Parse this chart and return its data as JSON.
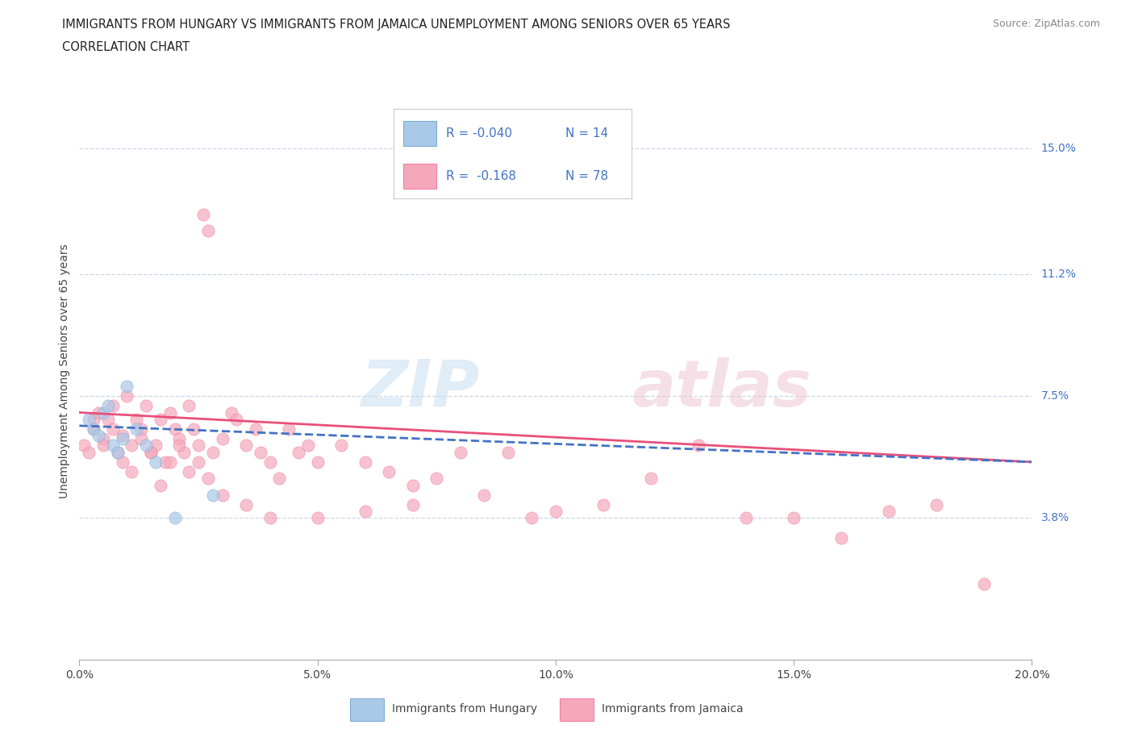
{
  "title_line1": "IMMIGRANTS FROM HUNGARY VS IMMIGRANTS FROM JAMAICA UNEMPLOYMENT AMONG SENIORS OVER 65 YEARS",
  "title_line2": "CORRELATION CHART",
  "source_text": "Source: ZipAtlas.com",
  "ylabel": "Unemployment Among Seniors over 65 years",
  "xlim": [
    0.0,
    0.2
  ],
  "ylim": [
    -0.005,
    0.17
  ],
  "ytick_vals": [
    0.038,
    0.075,
    0.112,
    0.15
  ],
  "ytick_labels": [
    "3.8%",
    "7.5%",
    "11.2%",
    "15.0%"
  ],
  "xtick_vals": [
    0.0,
    0.05,
    0.1,
    0.15,
    0.2
  ],
  "xtick_labels": [
    "0.0%",
    "5.0%",
    "10.0%",
    "15.0%",
    "20.0%"
  ],
  "hungary_color": "#aac8e8",
  "jamaica_color": "#f5a8bc",
  "hungary_edge_color": "#7aaed4",
  "jamaica_edge_color": "#f080a0",
  "hungary_line_color": "#4472c4",
  "jamaica_line_color": "#e8507a",
  "legend_R_hungary": "R = -0.040",
  "legend_N_hungary": "N = 14",
  "legend_R_jamaica": "R =  -0.168",
  "legend_N_jamaica": "N = 78",
  "hungary_label": "Immigrants from Hungary",
  "jamaica_label": "Immigrants from Jamaica",
  "background_color": "#ffffff",
  "grid_color": "#c8d8e8",
  "hungary_scatter_x": [
    0.002,
    0.003,
    0.004,
    0.005,
    0.006,
    0.007,
    0.008,
    0.009,
    0.01,
    0.012,
    0.014,
    0.016,
    0.02,
    0.028
  ],
  "hungary_scatter_y": [
    0.068,
    0.065,
    0.063,
    0.07,
    0.072,
    0.06,
    0.058,
    0.062,
    0.078,
    0.065,
    0.06,
    0.055,
    0.038,
    0.045
  ],
  "jamaica_scatter_x": [
    0.001,
    0.002,
    0.003,
    0.004,
    0.005,
    0.006,
    0.007,
    0.008,
    0.009,
    0.01,
    0.011,
    0.012,
    0.013,
    0.014,
    0.015,
    0.016,
    0.017,
    0.018,
    0.019,
    0.02,
    0.021,
    0.022,
    0.023,
    0.024,
    0.025,
    0.026,
    0.027,
    0.028,
    0.03,
    0.032,
    0.033,
    0.035,
    0.037,
    0.038,
    0.04,
    0.042,
    0.044,
    0.046,
    0.048,
    0.05,
    0.055,
    0.06,
    0.065,
    0.07,
    0.075,
    0.08,
    0.085,
    0.09,
    0.095,
    0.1,
    0.11,
    0.12,
    0.13,
    0.14,
    0.15,
    0.16,
    0.17,
    0.18,
    0.19,
    0.003,
    0.005,
    0.007,
    0.009,
    0.011,
    0.013,
    0.015,
    0.017,
    0.019,
    0.021,
    0.023,
    0.025,
    0.027,
    0.03,
    0.035,
    0.04,
    0.05,
    0.06,
    0.07
  ],
  "jamaica_scatter_y": [
    0.06,
    0.058,
    0.065,
    0.07,
    0.062,
    0.068,
    0.072,
    0.058,
    0.063,
    0.075,
    0.06,
    0.068,
    0.065,
    0.072,
    0.058,
    0.06,
    0.068,
    0.055,
    0.07,
    0.065,
    0.062,
    0.058,
    0.072,
    0.065,
    0.06,
    0.13,
    0.125,
    0.058,
    0.062,
    0.07,
    0.068,
    0.06,
    0.065,
    0.058,
    0.055,
    0.05,
    0.065,
    0.058,
    0.06,
    0.055,
    0.06,
    0.055,
    0.052,
    0.048,
    0.05,
    0.058,
    0.045,
    0.058,
    0.038,
    0.04,
    0.042,
    0.05,
    0.06,
    0.038,
    0.038,
    0.032,
    0.04,
    0.042,
    0.018,
    0.068,
    0.06,
    0.065,
    0.055,
    0.052,
    0.062,
    0.058,
    0.048,
    0.055,
    0.06,
    0.052,
    0.055,
    0.05,
    0.045,
    0.042,
    0.038,
    0.038,
    0.04,
    0.042
  ]
}
